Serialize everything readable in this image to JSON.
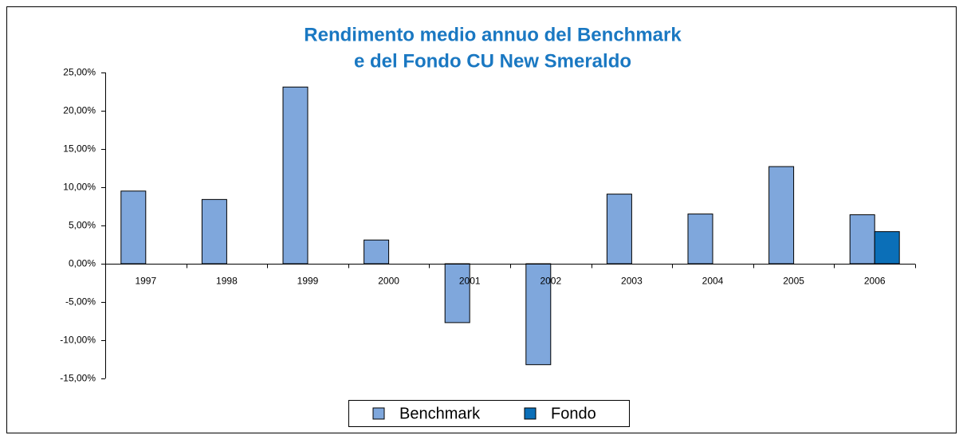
{
  "chart_data": {
    "type": "bar",
    "title": [
      "Rendimento medio annuo del Benchmark",
      "e del Fondo CU New Smeraldo"
    ],
    "categories": [
      "1997",
      "1998",
      "1999",
      "2000",
      "2001",
      "2002",
      "2003",
      "2004",
      "2005",
      "2006"
    ],
    "series": [
      {
        "name": "Benchmark",
        "color": "#7fa7dc",
        "values": [
          9.5,
          8.4,
          23.1,
          3.1,
          -7.7,
          -13.2,
          9.1,
          6.5,
          12.7,
          6.4
        ]
      },
      {
        "name": "Fondo",
        "color": "#0b6fb8",
        "values": [
          null,
          null,
          null,
          null,
          null,
          null,
          null,
          null,
          null,
          4.2
        ]
      }
    ],
    "ylim": [
      -15,
      25
    ],
    "yticks": [
      {
        "value": -15,
        "label": "-15,00%"
      },
      {
        "value": -10,
        "label": "-10,00%"
      },
      {
        "value": -5,
        "label": "-5,00%"
      },
      {
        "value": 0,
        "label": "0,00%"
      },
      {
        "value": 5,
        "label": "5,00%"
      },
      {
        "value": 10,
        "label": "10,00%"
      },
      {
        "value": 15,
        "label": "15,00%"
      },
      {
        "value": 20,
        "label": "20,00%"
      },
      {
        "value": 25,
        "label": "25,00%"
      }
    ],
    "grid": false,
    "legend": "bottom"
  }
}
